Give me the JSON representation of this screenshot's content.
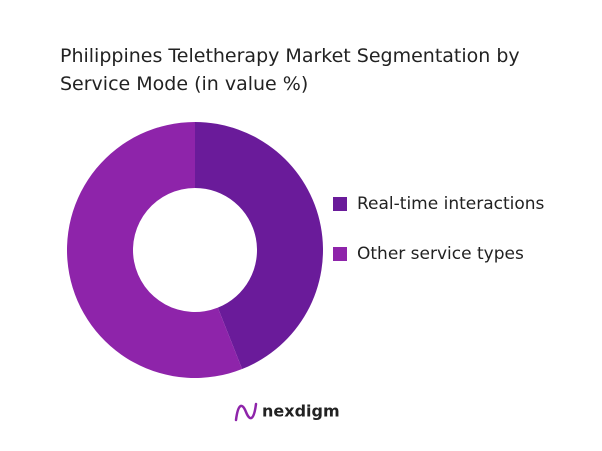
{
  "chart_data": {
    "type": "donut",
    "title": "Philippines Teletherapy Market Segmentation by Service Mode (in value %)",
    "categories": [
      "Real-time interactions",
      "Other service types"
    ],
    "values": [
      44,
      56
    ],
    "colors": [
      "#6a1b9a",
      "#8e24aa"
    ],
    "legend": "right"
  },
  "brand": "nexdigm"
}
